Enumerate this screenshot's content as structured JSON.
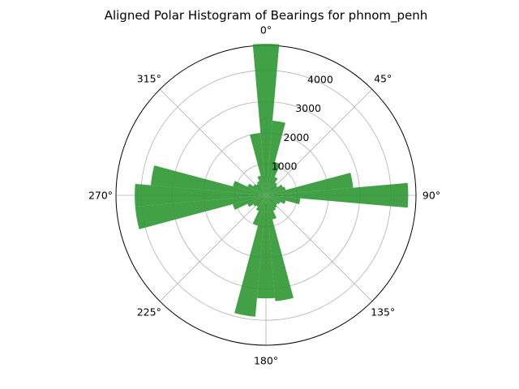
{
  "chart_data": {
    "type": "polar-bar",
    "title": "Aligned Polar Histogram of Bearings for phnom_penh",
    "theta_zero": "N",
    "theta_direction": "clockwise",
    "angle_ticks": [
      "0°",
      "45°",
      "90°",
      "135°",
      "180°",
      "225°",
      "270°",
      "315°"
    ],
    "radial_ticks": [
      1000,
      2000,
      3000,
      4000
    ],
    "radial_tick_labels": [
      "1000",
      "2000",
      "3000",
      "4000"
    ],
    "rlim": [
      0,
      4800
    ],
    "bin_width_deg": 10,
    "color": "#2e9632",
    "grid": true,
    "bins": [
      {
        "bearing": 0,
        "count": 4850
      },
      {
        "bearing": 10,
        "count": 2400
      },
      {
        "bearing": 20,
        "count": 1100
      },
      {
        "bearing": 30,
        "count": 650
      },
      {
        "bearing": 40,
        "count": 500
      },
      {
        "bearing": 50,
        "count": 450
      },
      {
        "bearing": 60,
        "count": 600
      },
      {
        "bearing": 70,
        "count": 650
      },
      {
        "bearing": 80,
        "count": 2800
      },
      {
        "bearing": 90,
        "count": 4550
      },
      {
        "bearing": 100,
        "count": 1100
      },
      {
        "bearing": 110,
        "count": 650
      },
      {
        "bearing": 120,
        "count": 500
      },
      {
        "bearing": 130,
        "count": 450
      },
      {
        "bearing": 140,
        "count": 500
      },
      {
        "bearing": 150,
        "count": 550
      },
      {
        "bearing": 160,
        "count": 800
      },
      {
        "bearing": 170,
        "count": 3400
      },
      {
        "bearing": 180,
        "count": 3300
      },
      {
        "bearing": 190,
        "count": 3900
      },
      {
        "bearing": 200,
        "count": 1000
      },
      {
        "bearing": 210,
        "count": 550
      },
      {
        "bearing": 220,
        "count": 450
      },
      {
        "bearing": 230,
        "count": 500
      },
      {
        "bearing": 240,
        "count": 650
      },
      {
        "bearing": 250,
        "count": 1100
      },
      {
        "bearing": 260,
        "count": 4200
      },
      {
        "bearing": 270,
        "count": 4200
      },
      {
        "bearing": 280,
        "count": 3700
      },
      {
        "bearing": 290,
        "count": 1100
      },
      {
        "bearing": 300,
        "count": 650
      },
      {
        "bearing": 310,
        "count": 500
      },
      {
        "bearing": 320,
        "count": 450
      },
      {
        "bearing": 330,
        "count": 500
      },
      {
        "bearing": 340,
        "count": 650
      },
      {
        "bearing": 350,
        "count": 2000
      }
    ]
  }
}
